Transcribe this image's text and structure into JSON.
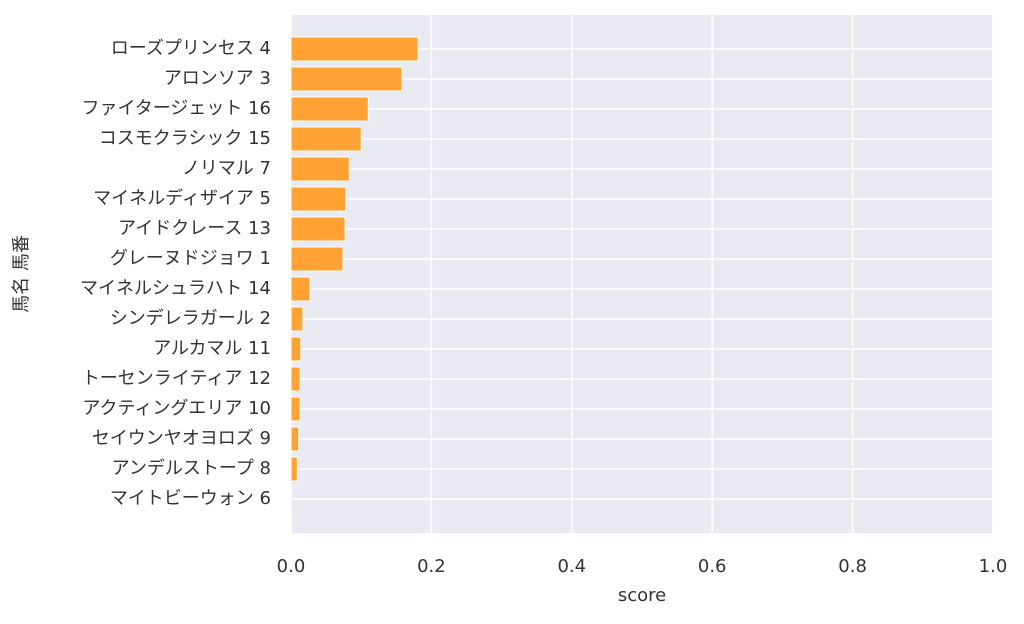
{
  "chart_data": {
    "type": "barh",
    "categories": [
      "ローズプリンセス 4",
      "アロンソア 3",
      "ファイタージェット 16",
      "コスモクラシック 15",
      "ノリマル 7",
      "マイネルディザイア 5",
      "アイドクレース 13",
      "グレーヌドジョワ 1",
      "マイネルシュラハト 14",
      "シンデレラガール 2",
      "アルカマル 11",
      "トーセンライティア 12",
      "アクティングエリア 10",
      "セイウンヤオヨロズ 9",
      "アンデルストープ 8",
      "マイトビーウォン 6"
    ],
    "values": [
      0.181,
      0.158,
      0.11,
      0.1,
      0.083,
      0.078,
      0.077,
      0.074,
      0.027,
      0.017,
      0.014,
      0.013,
      0.013,
      0.011,
      0.009,
      0
    ],
    "color": "#ffa133",
    "xlabel": "score",
    "ylabel": "馬名 馬番",
    "xlim": [
      0,
      1
    ],
    "xticks": [
      {
        "value": 0,
        "label": "0.0"
      },
      0.2,
      0.4,
      0.6,
      0.8,
      {
        "value": 1,
        "label": "1.0"
      }
    ],
    "grid": true
  }
}
